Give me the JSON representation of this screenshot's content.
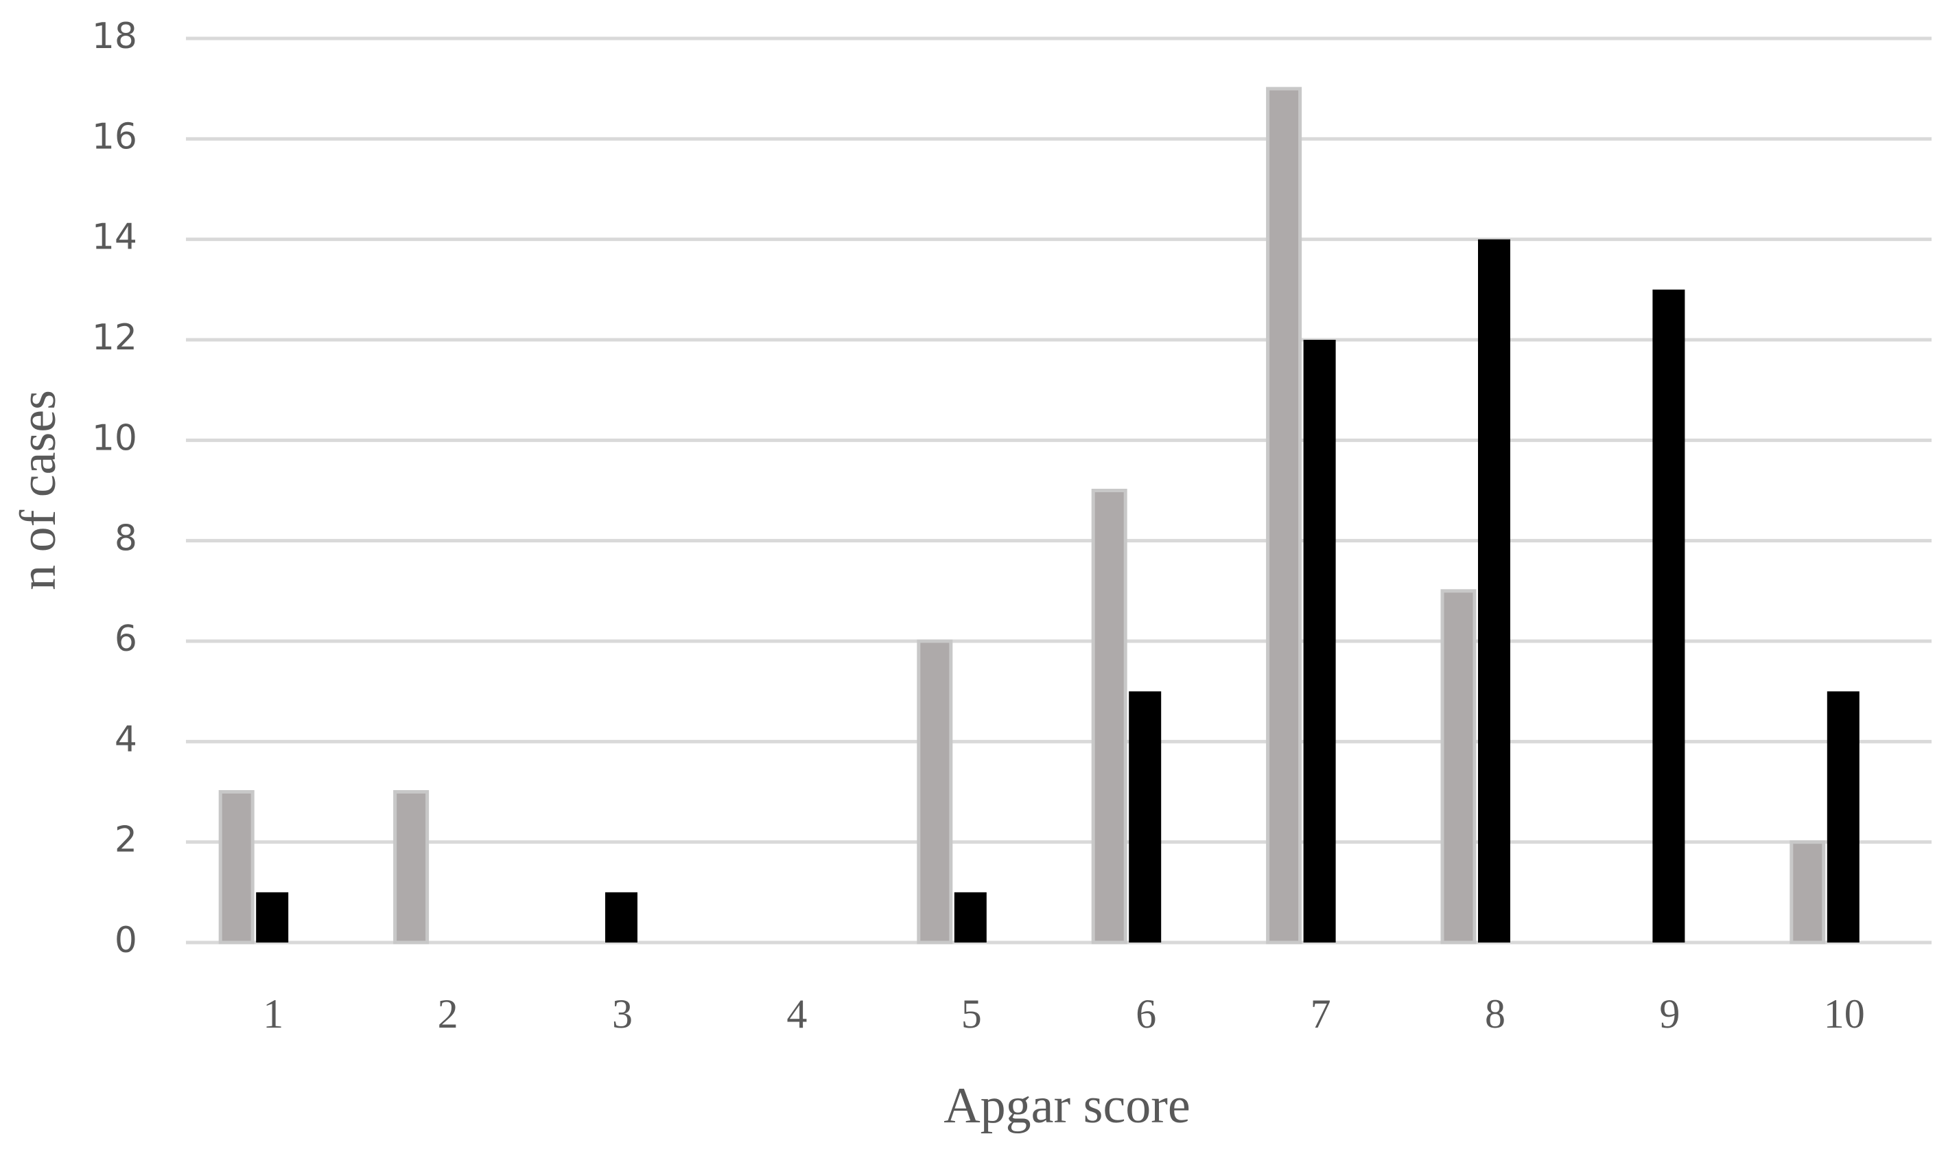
{
  "chart_data": {
    "type": "bar",
    "x_label": "Apgar score",
    "y_label": "n of cases",
    "categories": [
      "1",
      "2",
      "3",
      "4",
      "5",
      "6",
      "7",
      "8",
      "9",
      "10"
    ],
    "series": [
      {
        "color": "#aeaaaa",
        "values": [
          3,
          3,
          0,
          0,
          6,
          9,
          17,
          7,
          0,
          2
        ]
      },
      {
        "color": "#000000",
        "values": [
          1,
          0,
          1,
          0,
          1,
          5,
          12,
          14,
          13,
          5
        ]
      }
    ],
    "ylim": [
      0,
      18
    ],
    "yticks": [
      0,
      2,
      4,
      6,
      8,
      10,
      12,
      14,
      16,
      18
    ],
    "grid": true
  }
}
